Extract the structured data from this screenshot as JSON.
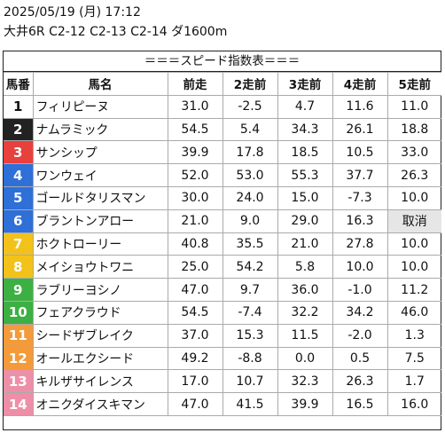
{
  "header": {
    "line1": "2025/05/19 (月) 17:12",
    "line2": "大井6R C2-12 C2-13 C2-14 ダ1600m"
  },
  "title": "＝＝＝スピード指数表＝＝＝",
  "columns": [
    "馬番",
    "馬名",
    "前走",
    "2走前",
    "3走前",
    "4走前",
    "5走前"
  ],
  "rows": [
    {
      "no": "1",
      "name": "フィリピーヌ",
      "v": [
        "31.0",
        "-2.5",
        "4.7",
        "11.6",
        "11.0"
      ],
      "color": "#ffffff",
      "text": "#111111"
    },
    {
      "no": "2",
      "name": "ナムラミック",
      "v": [
        "54.5",
        "5.4",
        "34.3",
        "26.1",
        "18.8"
      ],
      "color": "#222222",
      "text": "#ffffff"
    },
    {
      "no": "3",
      "name": "サンシップ",
      "v": [
        "39.9",
        "17.8",
        "18.5",
        "10.5",
        "33.0"
      ],
      "color": "#e8403c",
      "text": "#ffffff"
    },
    {
      "no": "4",
      "name": "ワンウェイ",
      "v": [
        "52.0",
        "53.0",
        "55.3",
        "37.7",
        "26.3"
      ],
      "color": "#2e6fd8",
      "text": "#ffffff"
    },
    {
      "no": "5",
      "name": "ゴールドタリスマン",
      "v": [
        "30.0",
        "24.0",
        "15.0",
        "-7.3",
        "10.0"
      ],
      "color": "#2e6fd8",
      "text": "#ffffff"
    },
    {
      "no": "6",
      "name": "ブラントンアロー",
      "v": [
        "21.0",
        "9.0",
        "29.0",
        "16.3",
        "取消"
      ],
      "color": "#2e6fd8",
      "text": "#ffffff"
    },
    {
      "no": "7",
      "name": "ホクトローリー",
      "v": [
        "40.8",
        "35.5",
        "21.0",
        "27.8",
        "10.0"
      ],
      "color": "#f2c21a",
      "text": "#ffffff"
    },
    {
      "no": "8",
      "name": "メイショウトワニ",
      "v": [
        "25.0",
        "54.2",
        "5.8",
        "10.0",
        "10.0"
      ],
      "color": "#f2c21a",
      "text": "#ffffff"
    },
    {
      "no": "9",
      "name": "ラブリーヨシノ",
      "v": [
        "47.0",
        "9.7",
        "36.0",
        "-1.0",
        "11.2"
      ],
      "color": "#3cb043",
      "text": "#ffffff"
    },
    {
      "no": "10",
      "name": "フェアクラウド",
      "v": [
        "54.5",
        "-7.4",
        "32.2",
        "34.2",
        "46.0"
      ],
      "color": "#3cb043",
      "text": "#ffffff"
    },
    {
      "no": "11",
      "name": "シードザブレイク",
      "v": [
        "37.0",
        "15.3",
        "11.5",
        "-2.0",
        "1.3"
      ],
      "color": "#f39a3a",
      "text": "#ffffff"
    },
    {
      "no": "12",
      "name": "オールエクシード",
      "v": [
        "49.2",
        "-8.8",
        "0.0",
        "0.5",
        "7.5"
      ],
      "color": "#f39a3a",
      "text": "#ffffff"
    },
    {
      "no": "13",
      "name": "キルザサイレンス",
      "v": [
        "17.0",
        "10.7",
        "32.3",
        "26.3",
        "1.7"
      ],
      "color": "#ee8fa8",
      "text": "#ffffff"
    },
    {
      "no": "14",
      "name": "オニクダイスキマン",
      "v": [
        "47.0",
        "41.5",
        "39.9",
        "16.5",
        "16.0"
      ],
      "color": "#ee8fa8",
      "text": "#ffffff"
    }
  ]
}
